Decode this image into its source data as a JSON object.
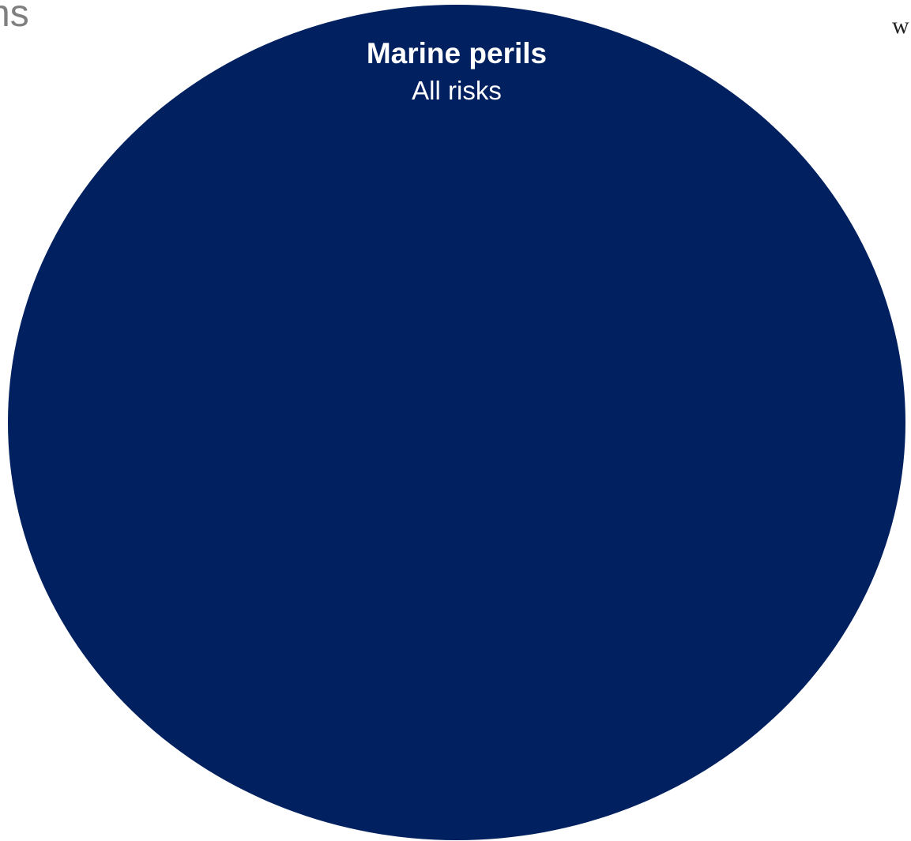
{
  "page": {
    "left_edge_text": "ns",
    "right_edge_text": "w"
  },
  "diagram": {
    "fill_color": "#00205f",
    "title": "Marine perils",
    "subtitle": "All risks"
  }
}
